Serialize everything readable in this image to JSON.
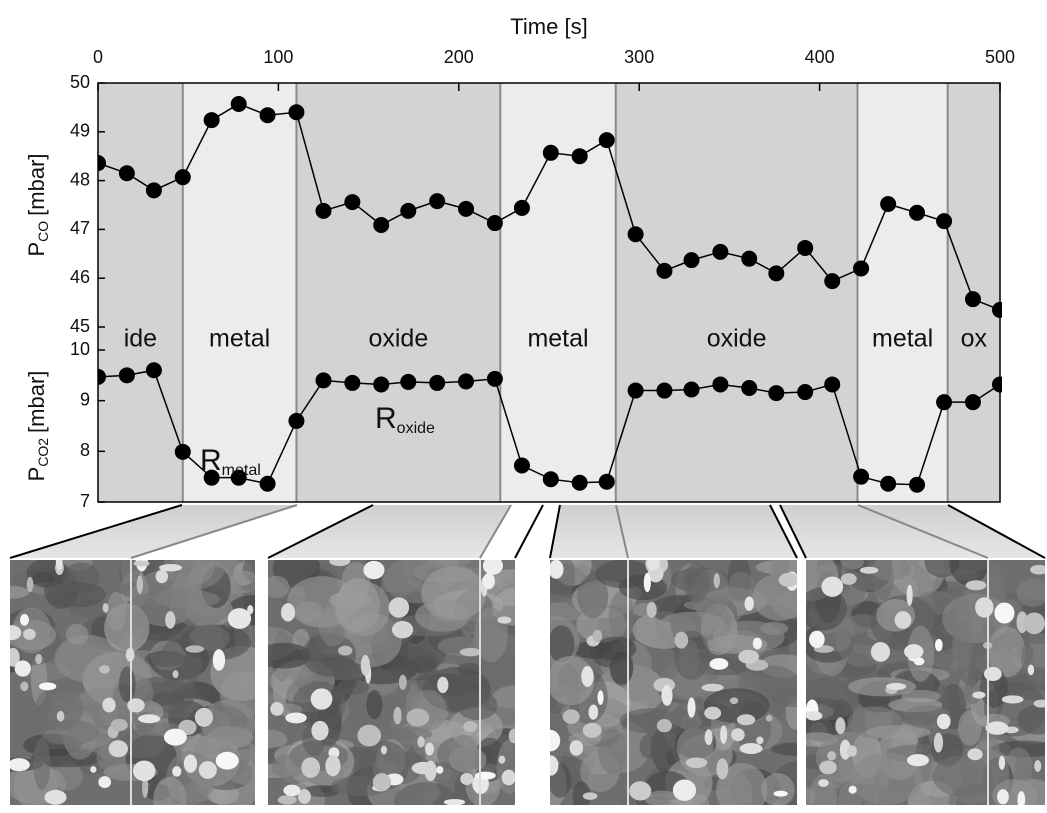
{
  "chart_data": [
    {
      "type": "line",
      "xlabel": "Time [s]",
      "xlim": [
        0,
        500
      ],
      "xticks": [
        0,
        100,
        200,
        300,
        400,
        500
      ],
      "ylabel": "P",
      "ylabel_sub": "CO",
      "ylabel_unit": "[mbar]",
      "ylim": [
        45,
        50
      ],
      "yticks": [
        45,
        46,
        47,
        48,
        49,
        50
      ],
      "regions": [
        {
          "start": 0,
          "end": 47,
          "label": "ide",
          "color": "#d3d3d3"
        },
        {
          "start": 47,
          "end": 110,
          "label": "metal",
          "color": "#ececec"
        },
        {
          "start": 110,
          "end": 223,
          "label": "oxide",
          "color": "#d3d3d3"
        },
        {
          "start": 223,
          "end": 287,
          "label": "metal",
          "color": "#ececec"
        },
        {
          "start": 287,
          "end": 421,
          "label": "oxide",
          "color": "#d3d3d3"
        },
        {
          "start": 421,
          "end": 471,
          "label": "metal",
          "color": "#ececec"
        },
        {
          "start": 471,
          "end": 500,
          "label": "ox",
          "color": "#d3d3d3"
        }
      ],
      "x": [
        0,
        16,
        31,
        47,
        63,
        78,
        94,
        110,
        125,
        141,
        157,
        172,
        188,
        204,
        220,
        235,
        251,
        267,
        282,
        298,
        314,
        329,
        345,
        361,
        376,
        392,
        407,
        423,
        438,
        454,
        469,
        485,
        500
      ],
      "series": [
        {
          "color": "#000000",
          "values": [
            48.36,
            48.15,
            47.8,
            48.07,
            49.24,
            49.57,
            49.34,
            49.4,
            47.38,
            47.56,
            47.09,
            47.38,
            47.58,
            47.42,
            47.13,
            47.44,
            48.57,
            48.5,
            48.83,
            46.9,
            46.15,
            46.37,
            46.54,
            46.4,
            46.1,
            46.62,
            45.94,
            46.2,
            47.52,
            47.34,
            47.17,
            45.57,
            45.35
          ]
        }
      ]
    },
    {
      "type": "line",
      "xlim": [
        0,
        500
      ],
      "ylabel": "P",
      "ylabel_sub": "CO2",
      "ylabel_unit": "[mbar]",
      "ylim": [
        7,
        10
      ],
      "yticks": [
        7,
        8,
        9,
        10
      ],
      "annotations": [
        {
          "text": "R",
          "sub": "metal"
        },
        {
          "text": "R",
          "sub": "oxide"
        }
      ],
      "x": [
        0,
        16,
        31,
        47,
        63,
        78,
        94,
        110,
        125,
        141,
        157,
        172,
        188,
        204,
        220,
        235,
        251,
        267,
        282,
        298,
        314,
        329,
        345,
        361,
        376,
        392,
        407,
        423,
        438,
        454,
        469,
        485,
        500
      ],
      "series": [
        {
          "color": "#000000",
          "values": [
            9.47,
            9.5,
            9.6,
            7.99,
            7.48,
            7.48,
            7.36,
            8.6,
            9.4,
            9.35,
            9.32,
            9.37,
            9.35,
            9.38,
            9.43,
            7.72,
            7.45,
            7.38,
            7.4,
            9.2,
            9.2,
            9.22,
            9.32,
            9.25,
            9.15,
            9.17,
            9.32,
            7.5,
            7.36,
            7.34,
            8.97,
            8.97,
            9.32
          ]
        }
      ]
    }
  ]
}
